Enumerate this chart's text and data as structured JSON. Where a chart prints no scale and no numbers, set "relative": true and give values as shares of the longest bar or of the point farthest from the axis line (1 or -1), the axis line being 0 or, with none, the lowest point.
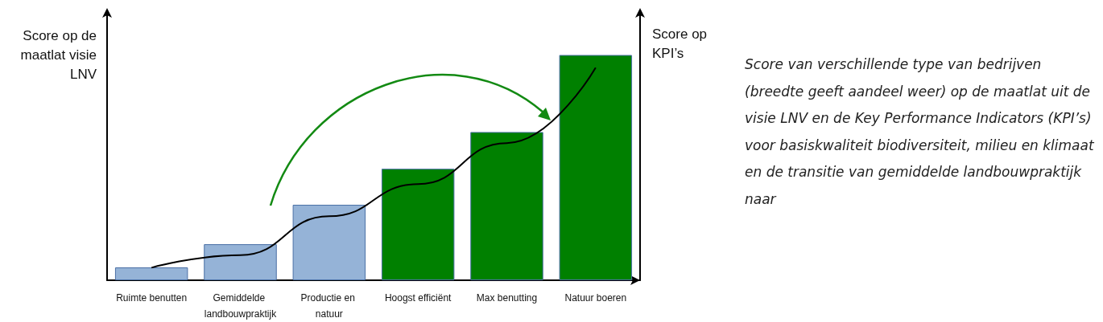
{
  "chart_data": {
    "type": "bar",
    "relative": true,
    "ylabel": "Score op de maatlat visie LNV",
    "y2label": "Score op KPI’s",
    "categories": [
      "Ruimte benutten",
      "Gemiddelde landbouwpraktijk",
      "Productie en natuur",
      "Hoogst efficiënt",
      "Max benutting",
      "Natuur boeren"
    ],
    "series": [
      {
        "values": [
          0.057,
          0.16,
          0.335,
          0.495,
          0.658,
          1
        ],
        "colors": [
          "#95b3d7",
          "#95b3d7",
          "#95b3d7",
          "#008000",
          "#008000",
          "#008000"
        ]
      },
      {
        "type": "line",
        "axis": "y2",
        "color": "#000000",
        "marker": "none",
        "values": [
          0.059,
          0.118,
          0.301,
          0.452,
          0.645,
          1
        ]
      }
    ],
    "annotations": [
      "Score van verschillende type van bedrijven (breedte geeft aandeel weer) op de maatlat uit de visie LNV en de Key Performance Indicators (KPI’s) voor basiskwaliteit biodiversiteit, milieu en klimaat en de transitie van gemiddelde landbouwpraktijk naar"
    ]
  }
}
